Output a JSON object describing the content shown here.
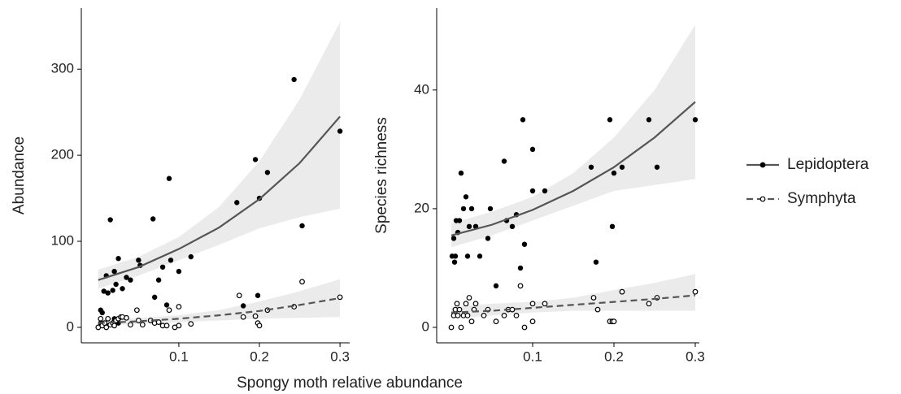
{
  "xlabel": "Spongy moth relative abundance",
  "legend": [
    {
      "name": "Lepidoptera",
      "color": "#000000",
      "line_color": "#555555",
      "dash": false,
      "marker": "filled"
    },
    {
      "name": "Symphyta",
      "color": "#000000",
      "line_color": "#555555",
      "dash": true,
      "marker": "open"
    }
  ],
  "band_color": "#ebebeb",
  "chart_data": [
    {
      "type": "scatter",
      "ylabel": "Abundance",
      "xlim": [
        -0.021,
        0.312
      ],
      "ylim": [
        -18,
        371
      ],
      "xticks": [
        0.1,
        0.2,
        0.3
      ],
      "yticks": [
        0,
        100,
        200,
        300
      ],
      "series": [
        {
          "x": [
            0.003,
            0.005,
            0.007,
            0.01,
            0.012,
            0.015,
            0.018,
            0.02,
            0.022,
            0.025,
            0.03,
            0.035,
            0.04,
            0.05,
            0.052,
            0.068,
            0.07,
            0.075,
            0.08,
            0.085,
            0.088,
            0.09,
            0.1,
            0.115,
            0.172,
            0.18,
            0.195,
            0.198,
            0.2,
            0.21,
            0.243,
            0.253,
            0.3,
            0.003,
            0.01,
            0.02,
            0.025
          ],
          "values": [
            20,
            17,
            42,
            60,
            40,
            125,
            43,
            65,
            50,
            80,
            45,
            58,
            55,
            78,
            72,
            126,
            35,
            55,
            70,
            26,
            173,
            78,
            65,
            82,
            145,
            25,
            195,
            37,
            150,
            180,
            288,
            118,
            228,
            5,
            2,
            10,
            5
          ],
          "fit_x": [
            0,
            0.05,
            0.1,
            0.15,
            0.2,
            0.25,
            0.3
          ],
          "fit": [
            55,
            70,
            91,
            116,
            149,
            191,
            245
          ],
          "fit_lower": [
            45,
            60,
            78,
            96,
            115,
            128,
            138
          ],
          "fit_upper": [
            67,
            82,
            105,
            140,
            193,
            265,
            355
          ]
        },
        {
          "x": [
            0,
            0.003,
            0.005,
            0.008,
            0.01,
            0.012,
            0.015,
            0.018,
            0.02,
            0.022,
            0.025,
            0.028,
            0.03,
            0.035,
            0.04,
            0.048,
            0.05,
            0.055,
            0.065,
            0.07,
            0.075,
            0.08,
            0.085,
            0.088,
            0.095,
            0.1,
            0.1,
            0.115,
            0.175,
            0.18,
            0.195,
            0.198,
            0.2,
            0.21,
            0.243,
            0.253,
            0.3
          ],
          "values": [
            0,
            10,
            2,
            5,
            0,
            10,
            3,
            5,
            2,
            8,
            10,
            12,
            12,
            11,
            3,
            20,
            8,
            3,
            8,
            5,
            6,
            2,
            2,
            20,
            0,
            24,
            2,
            4,
            37,
            12,
            13,
            5,
            2,
            20,
            24,
            53,
            35
          ],
          "fit_x": [
            0,
            0.05,
            0.1,
            0.15,
            0.2,
            0.25,
            0.3
          ],
          "fit": [
            5,
            7,
            10,
            14,
            19,
            26,
            34
          ],
          "fit_lower": [
            2,
            4,
            6,
            8,
            10,
            11,
            12
          ],
          "fit_upper": [
            9,
            11,
            14,
            20,
            30,
            42,
            56
          ]
        }
      ]
    },
    {
      "type": "scatter",
      "ylabel": "Species richness",
      "xlim": [
        -0.018,
        0.305
      ],
      "ylim": [
        -2.6,
        53.8
      ],
      "xticks": [
        0.1,
        0.2,
        0.3
      ],
      "yticks": [
        0,
        20,
        40
      ],
      "series": [
        {
          "x": [
            0.001,
            0.003,
            0.004,
            0.005,
            0.006,
            0.008,
            0.01,
            0.012,
            0.015,
            0.018,
            0.02,
            0.022,
            0.025,
            0.03,
            0.035,
            0.045,
            0.048,
            0.055,
            0.065,
            0.068,
            0.075,
            0.08,
            0.085,
            0.088,
            0.09,
            0.1,
            0.1,
            0.115,
            0.172,
            0.178,
            0.195,
            0.198,
            0.2,
            0.21,
            0.243,
            0.253,
            0.3
          ],
          "values": [
            12,
            15,
            11,
            12,
            18,
            16,
            18,
            26,
            20,
            22,
            12,
            17,
            20,
            17,
            12,
            15,
            20,
            7,
            28,
            18,
            17,
            19,
            10,
            35,
            14,
            23,
            30,
            23,
            27,
            11,
            35,
            17,
            26,
            27,
            35,
            27,
            35
          ],
          "fit_x": [
            0,
            0.05,
            0.1,
            0.15,
            0.2,
            0.25,
            0.3
          ],
          "fit": [
            15.5,
            17.3,
            19.8,
            23,
            27,
            32,
            38
          ],
          "fit_lower": [
            13.5,
            15.5,
            18,
            20.5,
            23,
            24,
            25
          ],
          "fit_upper": [
            17.5,
            19.5,
            22,
            26,
            32,
            40,
            51
          ]
        },
        {
          "x": [
            0,
            0.003,
            0.005,
            0.007,
            0.008,
            0.01,
            0.012,
            0.015,
            0.018,
            0.02,
            0.022,
            0.025,
            0.028,
            0.03,
            0.04,
            0.045,
            0.055,
            0.065,
            0.07,
            0.075,
            0.08,
            0.085,
            0.09,
            0.1,
            0.1,
            0.115,
            0.175,
            0.18,
            0.195,
            0.198,
            0.2,
            0.21,
            0.243,
            0.253,
            0.3
          ],
          "values": [
            0,
            2,
            3,
            4,
            2,
            3,
            0,
            2,
            4,
            2,
            5,
            1,
            3,
            4,
            2,
            3,
            1,
            2,
            3,
            3,
            2,
            7,
            0,
            4,
            1,
            4,
            5,
            3,
            1,
            1,
            1,
            6,
            4,
            5,
            6
          ],
          "fit_x": [
            0,
            0.05,
            0.1,
            0.15,
            0.2,
            0.25,
            0.3
          ],
          "fit": [
            2.5,
            2.8,
            3.3,
            3.8,
            4.3,
            4.8,
            5.4
          ],
          "fit_lower": [
            1.5,
            2,
            2.5,
            2.8,
            2.8,
            2.8,
            2.8
          ],
          "fit_upper": [
            3.5,
            4,
            4.3,
            5,
            6.3,
            7.5,
            9
          ]
        }
      ]
    }
  ]
}
